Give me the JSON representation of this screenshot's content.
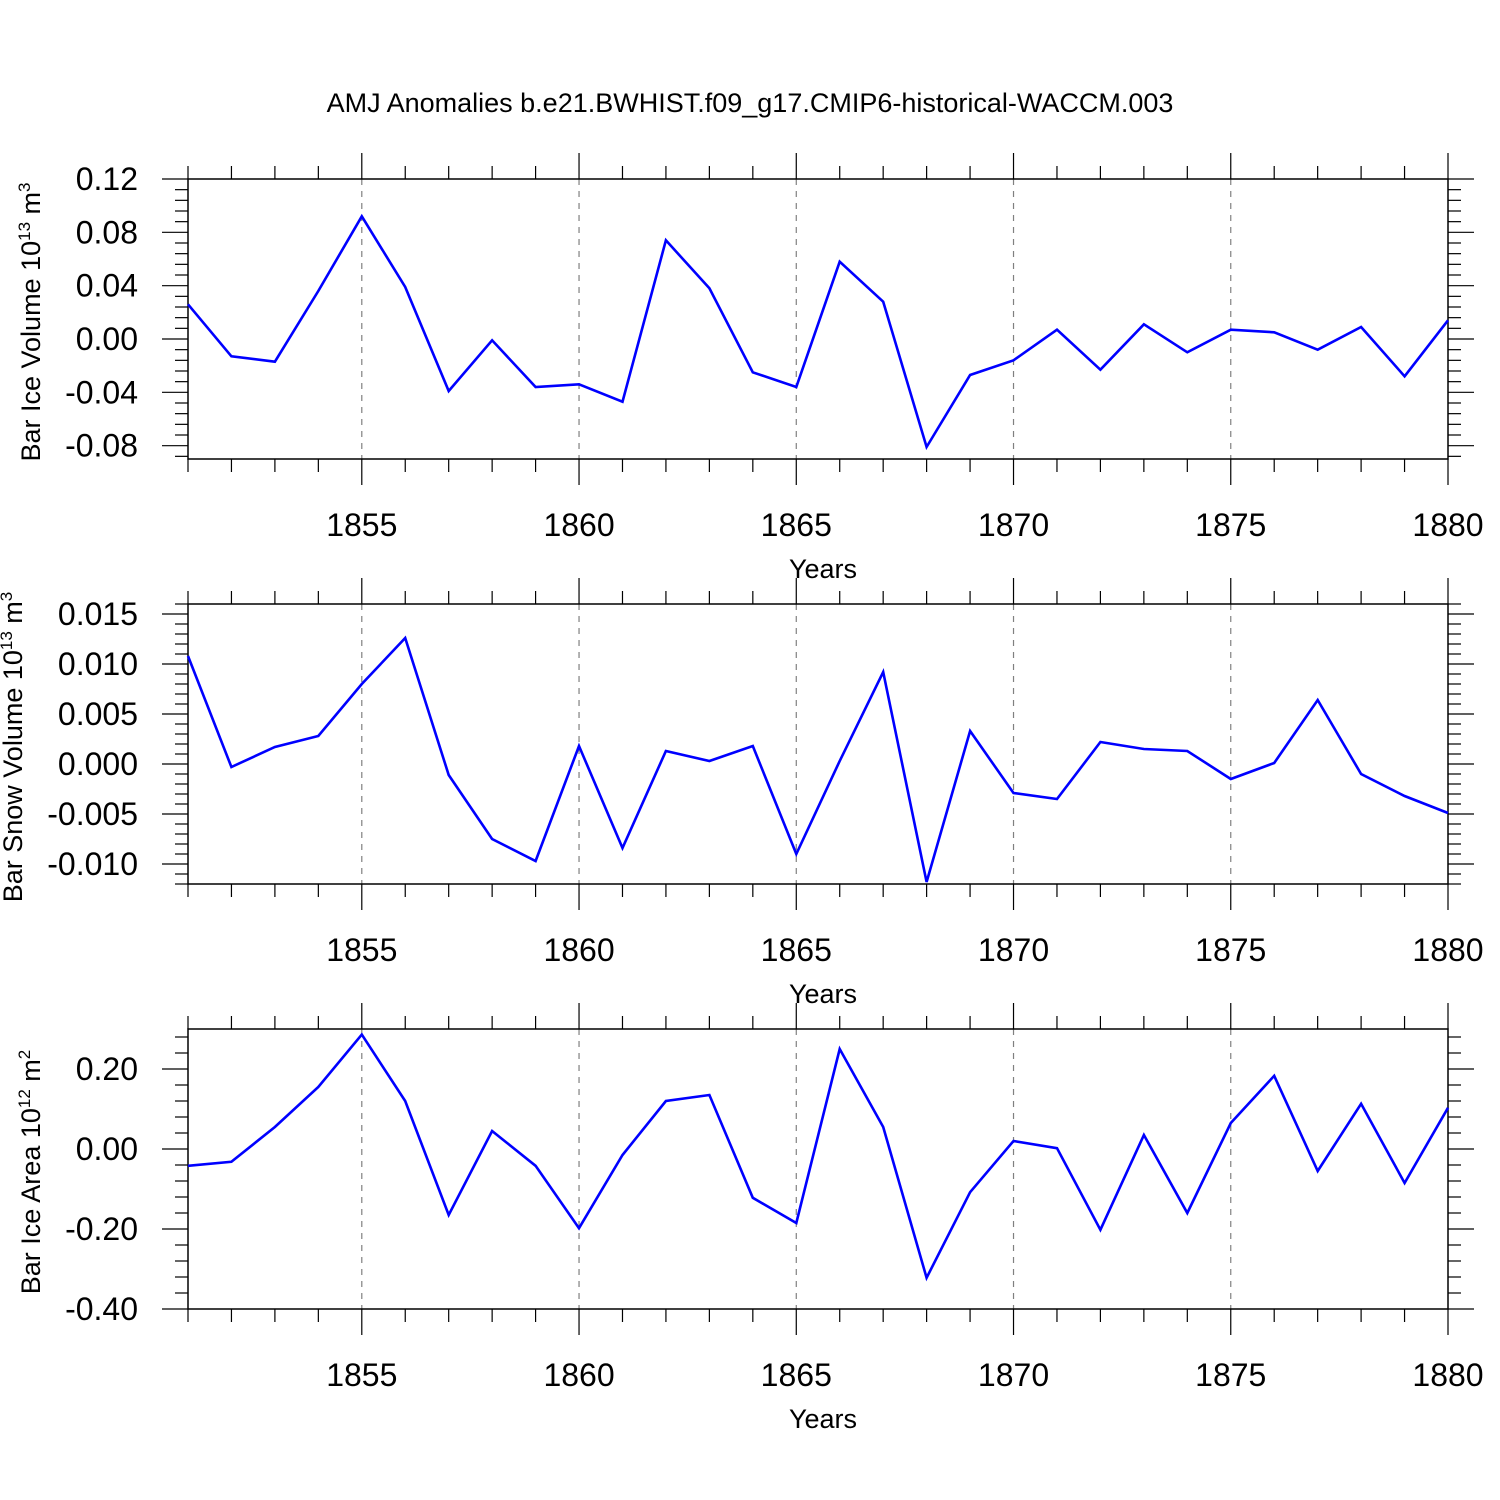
{
  "title": "AMJ Anomalies b.e21.BWHIST.f09_g17.CMIP6-historical-WACCM.003",
  "line_color": "#0000ff",
  "chart_data": [
    {
      "type": "line",
      "xlabel": "Years",
      "ylabel": {
        "text": "Bar Ice Volume 10",
        "sup1": "13",
        "unit": " m",
        "sup2": "3"
      },
      "xlim": [
        1851,
        1880
      ],
      "ylim": [
        -0.09,
        0.12
      ],
      "yticks": [
        0.12,
        0.08,
        0.04,
        0.0,
        -0.04,
        -0.08
      ],
      "ytick_labels": [
        "0.12",
        "0.08",
        "0.04",
        "0.00",
        "-0.04",
        "-0.08"
      ],
      "xticks": [
        1855,
        1860,
        1865,
        1870,
        1875,
        1880
      ],
      "xtick_labels": [
        "1855",
        "1860",
        "1865",
        "1870",
        "1875",
        "1880"
      ],
      "grid": "vertical dashed at major x ticks",
      "series": [
        {
          "x": [
            1851,
            1852,
            1853,
            1854,
            1855,
            1856,
            1857,
            1858,
            1859,
            1860,
            1861,
            1862,
            1863,
            1864,
            1865,
            1866,
            1867,
            1868,
            1869,
            1870,
            1871,
            1872,
            1873,
            1874,
            1875,
            1876,
            1877,
            1878,
            1879,
            1880
          ],
          "y": [
            0.026,
            -0.013,
            -0.017,
            0.036,
            0.092,
            0.039,
            -0.039,
            -0.001,
            -0.036,
            -0.034,
            -0.047,
            0.074,
            0.038,
            -0.025,
            -0.036,
            0.058,
            0.028,
            -0.081,
            -0.027,
            -0.016,
            0.007,
            -0.023,
            0.011,
            -0.01,
            0.007,
            0.005,
            -0.008,
            0.009,
            -0.028,
            0.014
          ]
        }
      ]
    },
    {
      "type": "line",
      "xlabel": "Years",
      "ylabel": {
        "text": "Bar Snow Volume 10",
        "sup1": "13",
        "unit": " m",
        "sup2": "3"
      },
      "xlim": [
        1851,
        1880
      ],
      "ylim": [
        -0.012,
        0.016
      ],
      "yticks": [
        0.015,
        0.01,
        0.005,
        0.0,
        -0.005,
        -0.01
      ],
      "ytick_labels": [
        "0.015",
        "0.010",
        "0.005",
        "0.000",
        "-0.005",
        "-0.010"
      ],
      "xticks": [
        1855,
        1860,
        1865,
        1870,
        1875,
        1880
      ],
      "xtick_labels": [
        "1855",
        "1860",
        "1865",
        "1870",
        "1875",
        "1880"
      ],
      "grid": "vertical dashed at major x ticks",
      "series": [
        {
          "x": [
            1851,
            1852,
            1853,
            1854,
            1855,
            1856,
            1857,
            1858,
            1859,
            1860,
            1861,
            1862,
            1863,
            1864,
            1865,
            1866,
            1867,
            1868,
            1869,
            1870,
            1871,
            1872,
            1873,
            1874,
            1875,
            1876,
            1877,
            1878,
            1879,
            1880
          ],
          "y": [
            0.0108,
            -0.0003,
            0.0017,
            0.0028,
            0.008,
            0.0126,
            -0.0011,
            -0.0075,
            -0.0097,
            0.0018,
            -0.0084,
            0.0013,
            0.0003,
            0.0018,
            -0.009,
            0.0003,
            0.0092,
            -0.0118,
            0.0033,
            -0.0029,
            -0.0035,
            0.0022,
            0.0015,
            0.0013,
            -0.0015,
            0.0001,
            0.0064,
            -0.001,
            -0.0032,
            -0.0049
          ]
        }
      ]
    },
    {
      "type": "line",
      "xlabel": "Years",
      "ylabel": {
        "text": "Bar Ice Area 10",
        "sup1": "12",
        "unit": " m",
        "sup2": "2"
      },
      "xlim": [
        1851,
        1880
      ],
      "ylim": [
        -0.4,
        0.3
      ],
      "yticks": [
        0.2,
        0.0,
        -0.2,
        -0.4
      ],
      "ytick_labels": [
        "0.20",
        "0.00",
        "-0.20",
        "-0.40"
      ],
      "xticks": [
        1855,
        1860,
        1865,
        1870,
        1875,
        1880
      ],
      "xtick_labels": [
        "1855",
        "1860",
        "1865",
        "1870",
        "1875",
        "1880"
      ],
      "grid": "vertical dashed at major x ticks",
      "series": [
        {
          "x": [
            1851,
            1852,
            1853,
            1854,
            1855,
            1856,
            1857,
            1858,
            1859,
            1860,
            1861,
            1862,
            1863,
            1864,
            1865,
            1866,
            1867,
            1868,
            1869,
            1870,
            1871,
            1872,
            1873,
            1874,
            1875,
            1876,
            1877,
            1878,
            1879,
            1880
          ],
          "y": [
            -0.042,
            -0.032,
            0.055,
            0.155,
            0.286,
            0.12,
            -0.165,
            0.045,
            -0.042,
            -0.198,
            -0.015,
            0.12,
            0.135,
            -0.122,
            -0.185,
            0.25,
            0.055,
            -0.322,
            -0.108,
            0.02,
            0.002,
            -0.202,
            0.035,
            -0.16,
            0.065,
            0.183,
            -0.055,
            0.113,
            -0.085,
            0.103
          ]
        }
      ]
    }
  ]
}
